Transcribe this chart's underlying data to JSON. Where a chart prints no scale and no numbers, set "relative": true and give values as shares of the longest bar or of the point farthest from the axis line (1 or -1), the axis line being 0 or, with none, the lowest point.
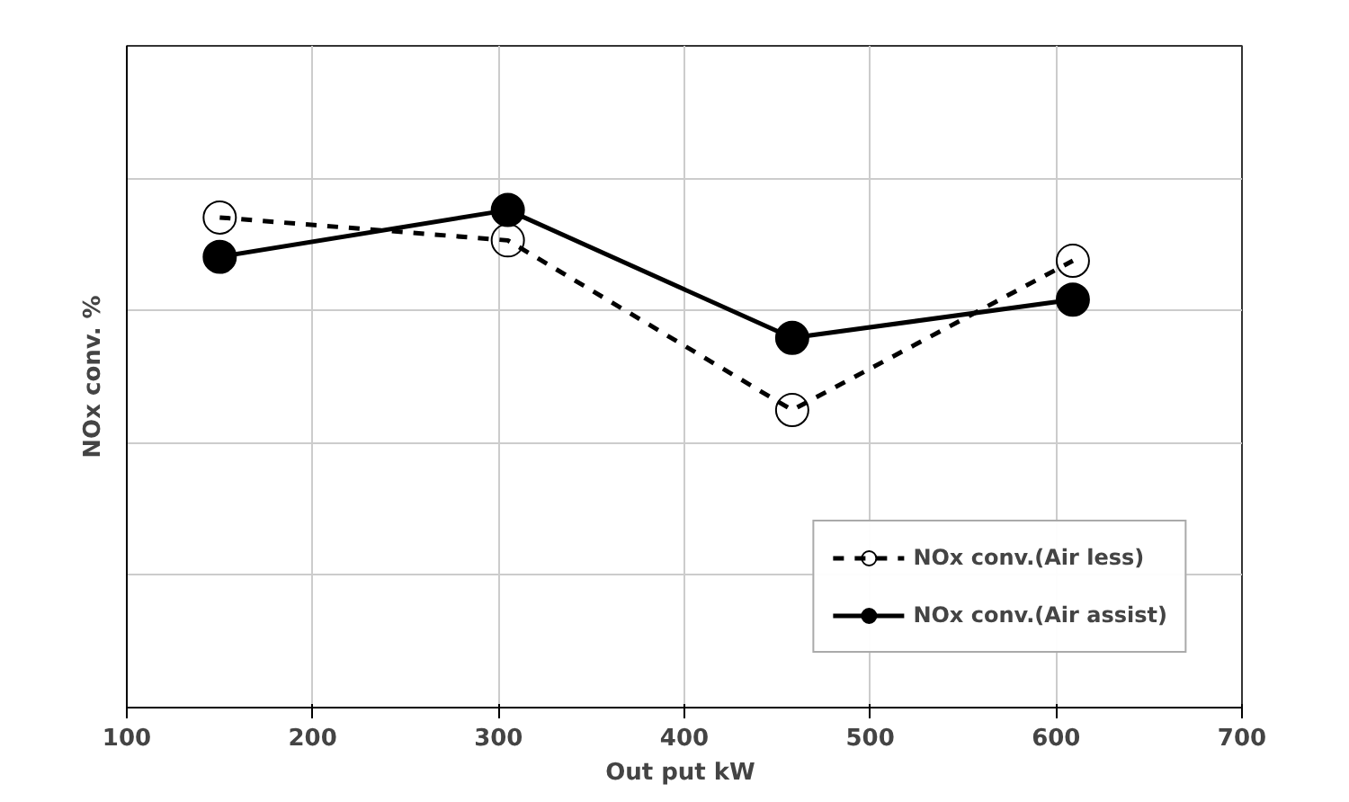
{
  "chart_data": {
    "type": "line",
    "relative": true,
    "xlabel": "Out put  kW",
    "ylabel": "NOx conv. %",
    "xlim": [
      100,
      700
    ],
    "xticks": [
      100,
      200,
      300,
      400,
      500,
      600,
      700
    ],
    "x": [
      150,
      305,
      458,
      609
    ],
    "series": [
      {
        "name": "NOx conv.(Air less)",
        "color": "#000000",
        "line_style": "dashed",
        "marker": "circle",
        "values": [
          0.985,
          0.939,
          0.598,
          0.898
        ]
      },
      {
        "name": "NOx conv.(Air assist)",
        "color": "#000000",
        "line_style": "solid",
        "marker": "circle",
        "values": [
          0.906,
          1,
          0.743,
          0.82
        ]
      }
    ],
    "grid": true,
    "legend": "bottom right"
  }
}
